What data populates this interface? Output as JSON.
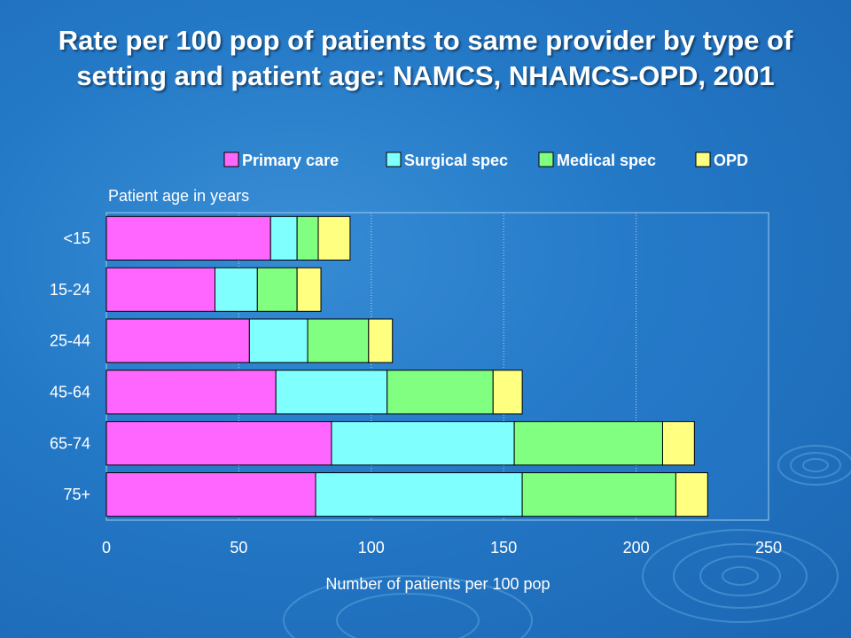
{
  "title": "Rate per 100 pop of patients to same provider by type of setting and patient age: NAMCS, NHAMCS-OPD, 2001",
  "chart_data": {
    "type": "bar",
    "orientation": "horizontal",
    "stacked": true,
    "title": "Rate per 100 pop of patients to same provider by type of setting and patient age: NAMCS, NHAMCS-OPD, 2001",
    "xlabel": "Number of patients per 100 pop",
    "ylabel": "Patient age in years",
    "categories": [
      "<15",
      "15-24",
      "25-44",
      "45-64",
      "65-74",
      "75+"
    ],
    "series": [
      {
        "name": "Primary care",
        "color": "#ff66ff",
        "values": [
          62,
          41,
          54,
          64,
          85,
          79
        ]
      },
      {
        "name": "Surgical spec",
        "color": "#80ffff",
        "values": [
          10,
          16,
          22,
          42,
          69,
          78
        ]
      },
      {
        "name": "Medical spec",
        "color": "#80ff80",
        "values": [
          8,
          15,
          23,
          40,
          56,
          58
        ]
      },
      {
        "name": "OPD",
        "color": "#ffff80",
        "values": [
          12,
          9,
          9,
          11,
          12,
          12
        ]
      }
    ],
    "xlim": [
      0,
      250
    ],
    "xticks": [
      "0",
      "50",
      "100",
      "150",
      "200",
      "250"
    ],
    "grid": "vertical dotted",
    "legend": "top"
  }
}
